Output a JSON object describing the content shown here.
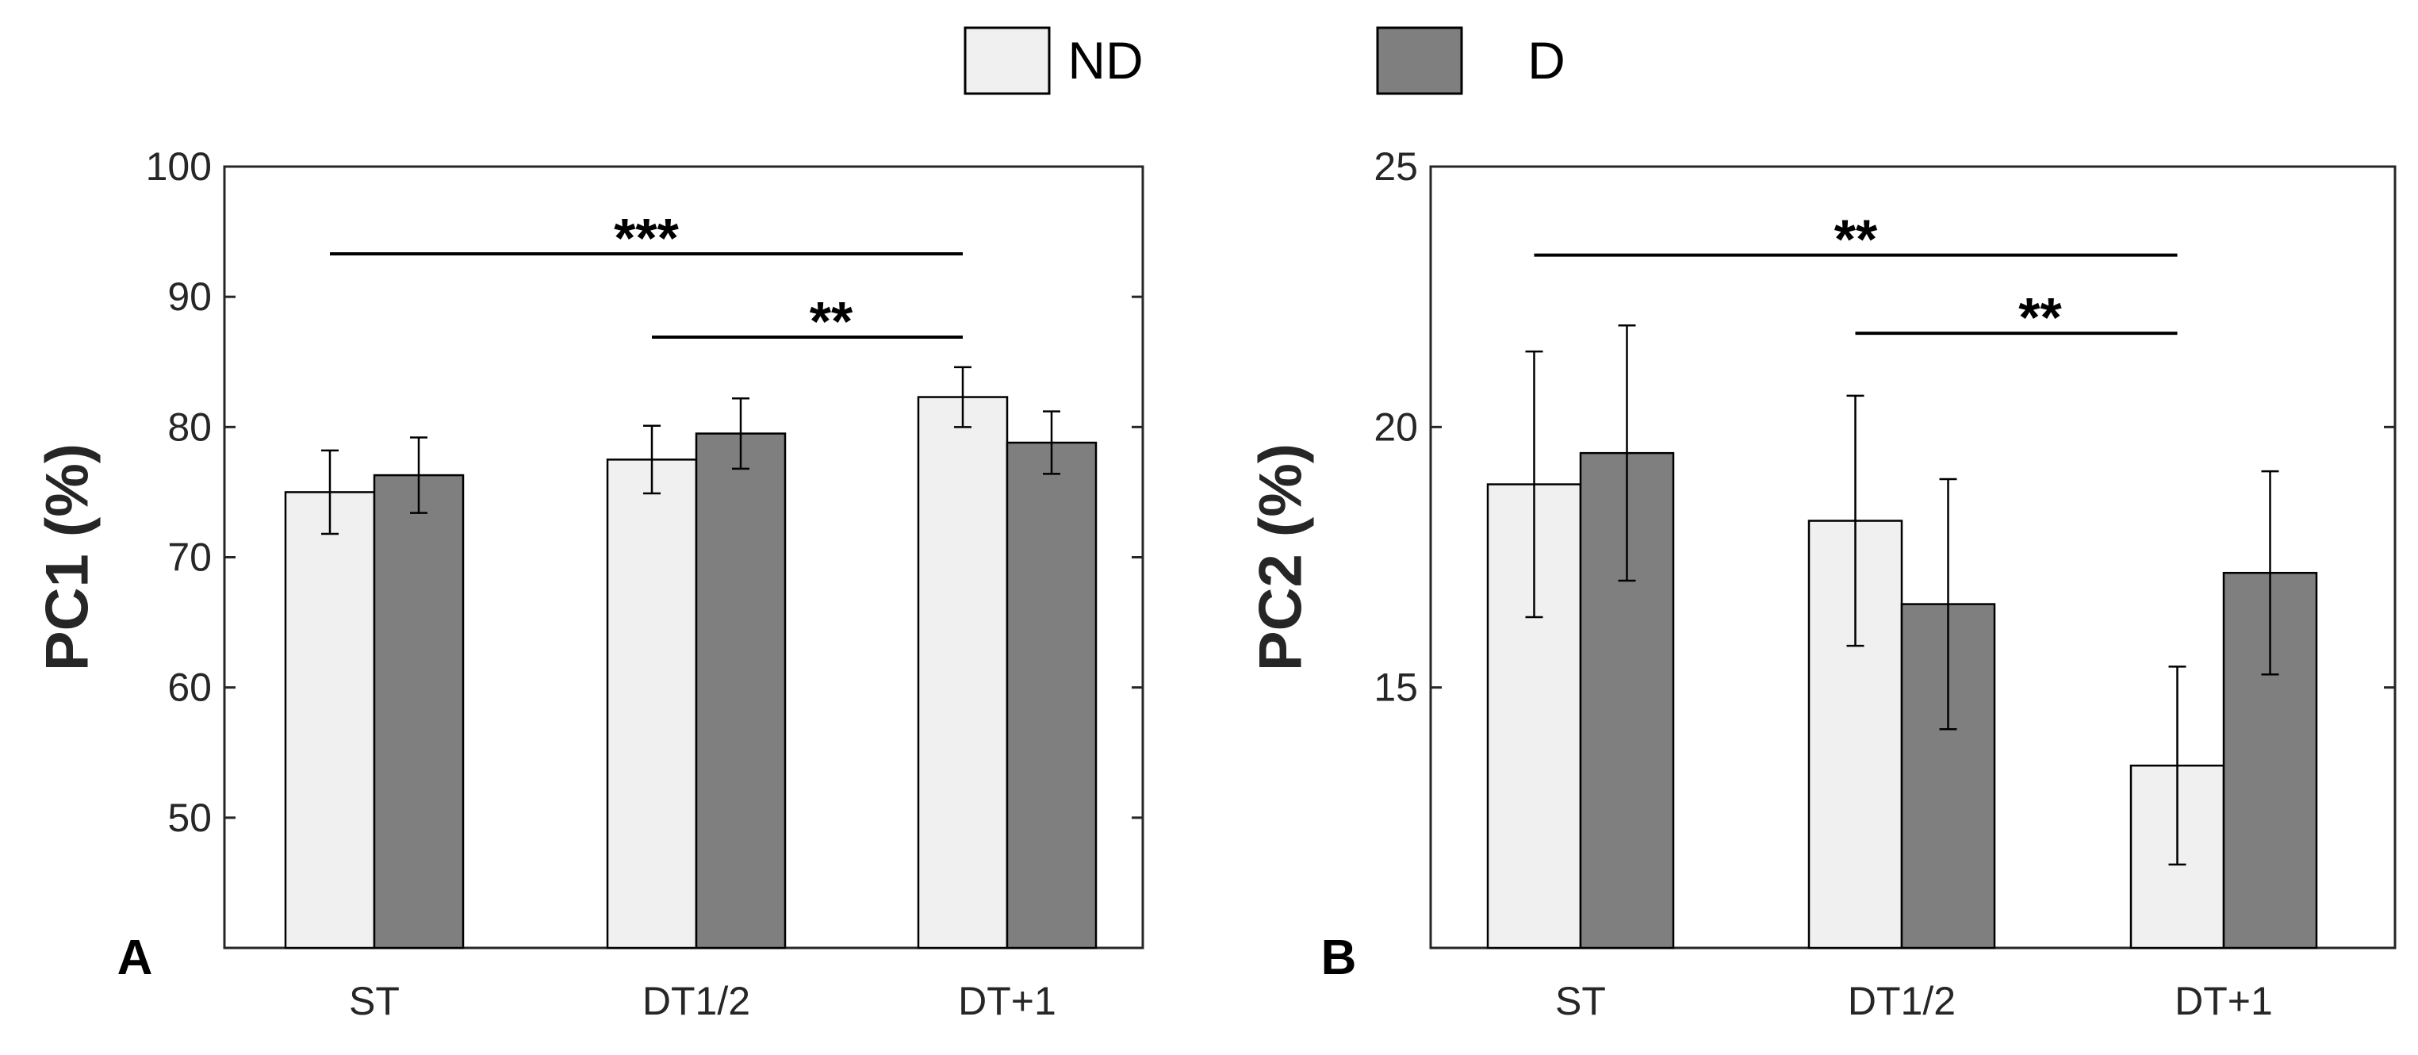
{
  "legend": {
    "items": [
      {
        "label": "ND",
        "color": "#f0f0f0"
      },
      {
        "label": "D",
        "color": "#7f7f7f"
      }
    ]
  },
  "chart_data": [
    {
      "type": "bar",
      "panel_label": "A",
      "categories": [
        "ST",
        "DT1/2",
        "DT+1"
      ],
      "series": [
        {
          "name": "ND",
          "values": [
            75.0,
            77.5,
            82.3
          ],
          "errors": [
            3.2,
            2.6,
            2.3
          ],
          "color": "#f0f0f0"
        },
        {
          "name": "D",
          "values": [
            76.3,
            79.5,
            78.8
          ],
          "errors": [
            2.9,
            2.7,
            2.4
          ],
          "color": "#7f7f7f"
        }
      ],
      "xlabel": "",
      "ylabel": "PC1 (%)",
      "ylim": [
        40,
        100
      ],
      "yticks": [
        50,
        60,
        70,
        80,
        90,
        100
      ],
      "significance": [
        {
          "from": "ST",
          "to": "DT+1",
          "y": 93.3,
          "label": "***"
        },
        {
          "from": "DT1/2",
          "to": "DT+1",
          "y": 86.9,
          "label": "**"
        }
      ],
      "grid": false,
      "legend_position": "top-center"
    },
    {
      "type": "bar",
      "panel_label": "B",
      "categories": [
        "ST",
        "DT1/2",
        "DT+1"
      ],
      "series": [
        {
          "name": "ND",
          "values": [
            18.9,
            18.2,
            13.5
          ],
          "errors": [
            2.55,
            2.4,
            1.9
          ],
          "color": "#f0f0f0"
        },
        {
          "name": "D",
          "values": [
            19.5,
            16.6,
            17.2
          ],
          "errors": [
            2.45,
            2.4,
            1.95
          ],
          "color": "#7f7f7f"
        }
      ],
      "xlabel": "",
      "ylabel": "PC2 (%)",
      "ylim": [
        10,
        25
      ],
      "yticks": [
        15,
        20,
        25
      ],
      "significance": [
        {
          "from": "ST",
          "to": "DT+1",
          "y": 23.3,
          "label": "**"
        },
        {
          "from": "DT1/2",
          "to": "DT+1",
          "y": 21.8,
          "label": "**"
        }
      ],
      "grid": false,
      "legend_position": "top-center"
    }
  ]
}
